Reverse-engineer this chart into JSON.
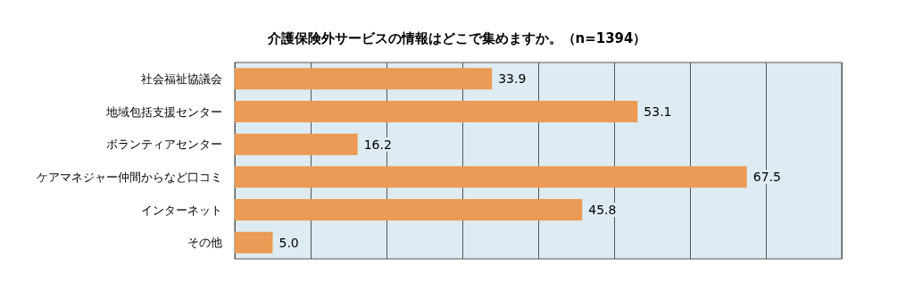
{
  "chart_data": {
    "type": "bar",
    "orientation": "horizontal",
    "title": "介護保険外サービスの情報はどこで集めますか。（n=1394）",
    "categories": [
      "社会福祉協議会",
      "地域包括支援センター",
      "ボランティアセンター",
      "ケアマネジャー仲間からなど口コミ",
      "インターネット",
      "その他"
    ],
    "values": [
      33.9,
      53.1,
      16.2,
      67.5,
      45.8,
      5.0
    ],
    "value_labels": [
      "33.9",
      "53.1",
      "16.2",
      "67.5",
      "45.8",
      "5.0"
    ],
    "color": "#eb9b55",
    "xlim": [
      0,
      80
    ],
    "xticks": [
      {
        "value": 0,
        "label": null
      },
      {
        "value": 10,
        "label": null
      },
      {
        "value": 20,
        "label": null
      },
      {
        "value": 30,
        "label": null
      },
      {
        "value": 40,
        "label": null
      },
      {
        "value": 50,
        "label": null
      },
      {
        "value": 60,
        "label": null
      },
      {
        "value": 70,
        "label": null
      },
      {
        "value": 80,
        "label": null
      }
    ],
    "grid": "x"
  }
}
